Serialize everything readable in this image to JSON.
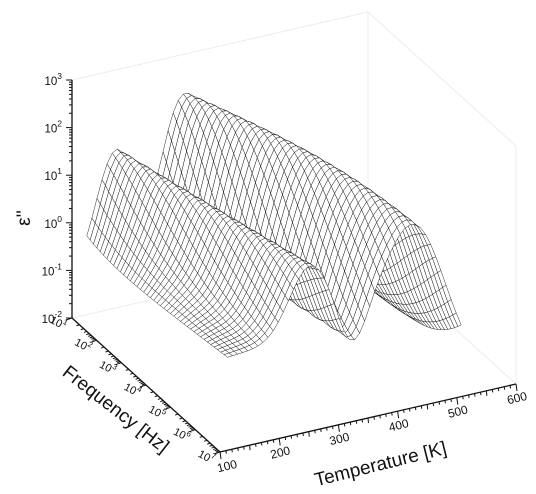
{
  "chart_data": {
    "type": "surface-3d",
    "zlabel": "ε''",
    "ylabel": "Frequency [Hz]",
    "xlabel": "Temperature [K]",
    "x_axis": {
      "quantity": "Temperature",
      "unit": "K",
      "range": [
        100,
        600
      ],
      "ticks": [
        "100",
        "200",
        "300",
        "400",
        "500",
        "600"
      ]
    },
    "y_axis": {
      "quantity": "Frequency",
      "unit": "Hz",
      "scale": "log",
      "range": [
        10,
        10000000
      ],
      "ticks": [
        {
          "base": "10",
          "exp": "1"
        },
        {
          "base": "10",
          "exp": "2"
        },
        {
          "base": "10",
          "exp": "3"
        },
        {
          "base": "10",
          "exp": "4"
        },
        {
          "base": "10",
          "exp": "5"
        },
        {
          "base": "10",
          "exp": "6"
        },
        {
          "base": "10",
          "exp": "7"
        }
      ]
    },
    "z_axis": {
      "quantity": "ε''",
      "scale": "log",
      "range": [
        0.01,
        1000
      ],
      "ticks": [
        {
          "base": "10",
          "exp": "-2"
        },
        {
          "base": "10",
          "exp": "-1"
        },
        {
          "base": "10",
          "exp": "0"
        },
        {
          "base": "10",
          "exp": "1"
        },
        {
          "base": "10",
          "exp": "2"
        },
        {
          "base": "10",
          "exp": "3"
        }
      ]
    },
    "surface_description": "wireframe mesh of dielectric loss vs temperature and log frequency; loss peaks shift to higher temperature with increasing frequency",
    "grid": false,
    "mesh_color": "#111111"
  }
}
